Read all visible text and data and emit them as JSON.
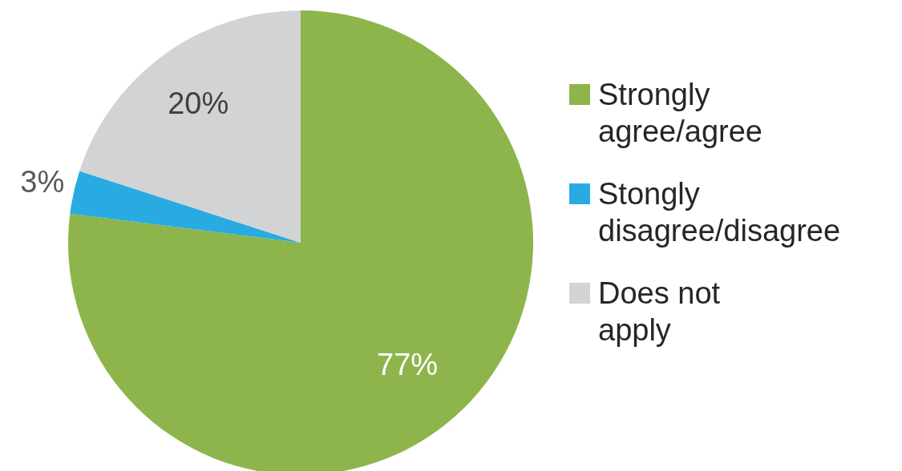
{
  "chart_data": {
    "type": "pie",
    "categories": [
      "Strongly agree/agree",
      "Stongly disagree/disagree",
      "Does not apply"
    ],
    "values": [
      77,
      3,
      20
    ],
    "value_labels": [
      "77%",
      "3%",
      "20%"
    ],
    "colors": [
      "#8db54b",
      "#29abe2",
      "#d1d3d4"
    ],
    "legend": "right"
  }
}
